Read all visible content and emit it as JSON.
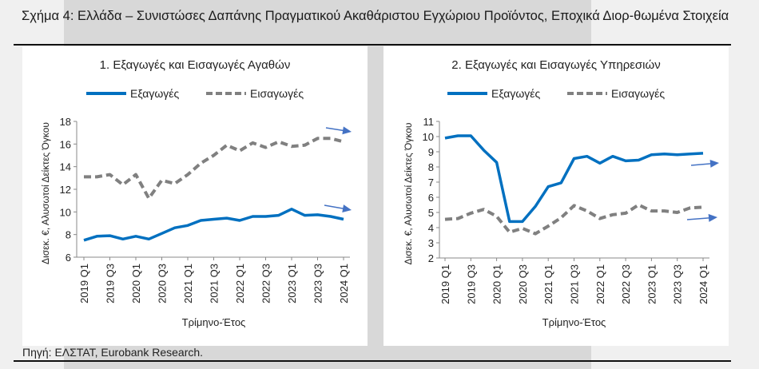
{
  "header": {
    "title": "Σχήμα 4: Ελλάδα – Συνιστώσες Δαπάνης Πραγματικού Ακαθάριστου Εγχώριου Προϊόντος, Εποχικά Διορ-θωμένα Στοιχεία"
  },
  "source": "Πηγή: ΕΛΣΤΑΤ, Eurobank Research.",
  "colors": {
    "exports": "#0070c0",
    "imports": "#808080",
    "arrow": "#4472c4"
  },
  "chart_data": [
    {
      "type": "line",
      "title": "1. Εξαγωγές και Εισαγωγές Αγαθών",
      "xlabel": "Τρίμηνο-Έτος",
      "ylabel": "Δισεκ. €, Αλυσωτοί Δείκτες Όγκου",
      "ylim": [
        6,
        18
      ],
      "yticks": [
        6,
        8,
        10,
        12,
        14,
        16,
        18
      ],
      "grid": false,
      "legend": "top",
      "x": [
        "2019 Q1",
        "2019 Q2",
        "2019 Q3",
        "2019 Q4",
        "2020 Q1",
        "2020 Q2",
        "2020 Q3",
        "2020 Q4",
        "2021 Q1",
        "2021 Q2",
        "2021 Q3",
        "2021 Q4",
        "2022 Q1",
        "2022 Q2",
        "2022 Q3",
        "2022 Q4",
        "2023 Q1",
        "2023 Q2",
        "2023 Q3",
        "2023 Q4",
        "2024 Q1"
      ],
      "xticklabels": [
        "2019 Q1",
        "2019 Q3",
        "2020 Q1",
        "2020 Q3",
        "2021 Q1",
        "2021 Q3",
        "2022 Q1",
        "2022 Q3",
        "2023 Q1",
        "2023 Q3",
        "2024 Q1"
      ],
      "series": [
        {
          "name": "Εξαγωγές",
          "style": "solid",
          "values": [
            7.5,
            7.85,
            7.9,
            7.6,
            7.85,
            7.6,
            8.1,
            8.6,
            8.8,
            9.25,
            9.35,
            9.45,
            9.25,
            9.6,
            9.6,
            9.7,
            10.25,
            9.7,
            9.75,
            9.6,
            9.35
          ]
        },
        {
          "name": "Εισαγωγές",
          "style": "dashed",
          "values": [
            13.1,
            13.1,
            13.3,
            12.4,
            13.3,
            11.2,
            12.8,
            12.5,
            13.3,
            14.3,
            15.0,
            15.9,
            15.4,
            16.1,
            15.7,
            16.2,
            15.8,
            15.9,
            16.5,
            16.5,
            16.2
          ]
        }
      ]
    },
    {
      "type": "line",
      "title": "2. Εξαγωγές και Εισαγωγές Υπηρεσιών",
      "xlabel": "Τρίμηνο-Έτος",
      "ylabel": "Δισεκ. €, Αλυσωτοί Δείκτες Όγκου",
      "ylim": [
        2,
        11
      ],
      "yticks": [
        2,
        3,
        4,
        5,
        6,
        7,
        8,
        9,
        10,
        11
      ],
      "grid": false,
      "legend": "top",
      "x": [
        "2019 Q1",
        "2019 Q2",
        "2019 Q3",
        "2019 Q4",
        "2020 Q1",
        "2020 Q2",
        "2020 Q3",
        "2020 Q4",
        "2021 Q1",
        "2021 Q2",
        "2021 Q3",
        "2021 Q4",
        "2022 Q1",
        "2022 Q2",
        "2022 Q3",
        "2022 Q4",
        "2023 Q1",
        "2023 Q2",
        "2023 Q3",
        "2023 Q4",
        "2024 Q1"
      ],
      "xticklabels": [
        "2019 Q1",
        "2019 Q3",
        "2020 Q1",
        "2020 Q3",
        "2021 Q1",
        "2021 Q3",
        "2022 Q1",
        "2022 Q3",
        "2023 Q1",
        "2023 Q3",
        "2024 Q1"
      ],
      "series": [
        {
          "name": "Εξαγωγές",
          "style": "solid",
          "values": [
            9.9,
            10.05,
            10.05,
            9.1,
            8.3,
            4.4,
            4.4,
            5.4,
            6.7,
            6.95,
            8.55,
            8.7,
            8.25,
            8.7,
            8.4,
            8.45,
            8.8,
            8.85,
            8.8,
            8.85,
            8.9
          ]
        },
        {
          "name": "Εισαγωγές",
          "style": "dashed",
          "values": [
            4.55,
            4.6,
            4.95,
            5.2,
            4.75,
            3.7,
            3.95,
            3.6,
            4.1,
            4.65,
            5.45,
            5.1,
            4.6,
            4.85,
            4.95,
            5.5,
            5.1,
            5.1,
            5.0,
            5.3,
            5.35
          ]
        }
      ]
    }
  ]
}
